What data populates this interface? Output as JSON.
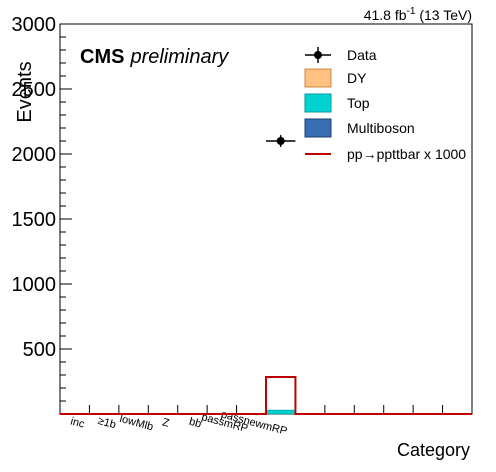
{
  "header": {
    "lumi_value": "41.8 fb",
    "lumi_exp": "-1",
    "lumi_energy": " (13 TeV)"
  },
  "cms_label": {
    "bold": "CMS",
    "italic": "preliminary"
  },
  "colors": {
    "dy": "#ffc080",
    "top": "#00d2d2",
    "multiboson": "#3a6eb4",
    "signal": "#c00000",
    "data": "#000000"
  },
  "chart_data": {
    "type": "bar",
    "xlabel": "Category",
    "ylabel": "Events",
    "ylim": [
      0,
      3000
    ],
    "yticks": [
      500,
      1000,
      1500,
      2000,
      2500,
      3000
    ],
    "categories": [
      "inc",
      "≥1b",
      "lowMlb",
      "Z",
      "bb",
      "passmRP",
      "passnewmRP",
      "",
      "",
      "",
      "",
      "",
      "",
      ""
    ],
    "legend": {
      "position": "top-right",
      "entries": [
        "Data",
        "DY",
        "Top",
        "Multiboson",
        "pp→ppttbar x 1000"
      ]
    },
    "series": [
      {
        "name": "DY",
        "kind": "stack",
        "values": [
          0,
          0,
          0,
          0,
          0,
          0,
          0,
          0,
          0,
          0,
          0,
          0,
          0,
          0
        ]
      },
      {
        "name": "Top",
        "kind": "stack",
        "values": [
          0,
          0,
          0,
          0,
          0,
          0,
          0,
          30,
          0,
          0,
          0,
          0,
          0,
          0
        ]
      },
      {
        "name": "Multiboson",
        "kind": "stack",
        "values": [
          0,
          0,
          0,
          0,
          0,
          0,
          0,
          0,
          0,
          0,
          0,
          0,
          0,
          0
        ]
      },
      {
        "name": "pp→ppttbar x 1000",
        "kind": "line",
        "values": [
          0,
          0,
          0,
          0,
          0,
          0,
          0,
          285,
          0,
          0,
          0,
          0,
          0,
          0
        ]
      },
      {
        "name": "Data",
        "kind": "points",
        "points": [
          {
            "bin": 7,
            "y": 2100,
            "yerr": 45
          }
        ]
      }
    ]
  }
}
